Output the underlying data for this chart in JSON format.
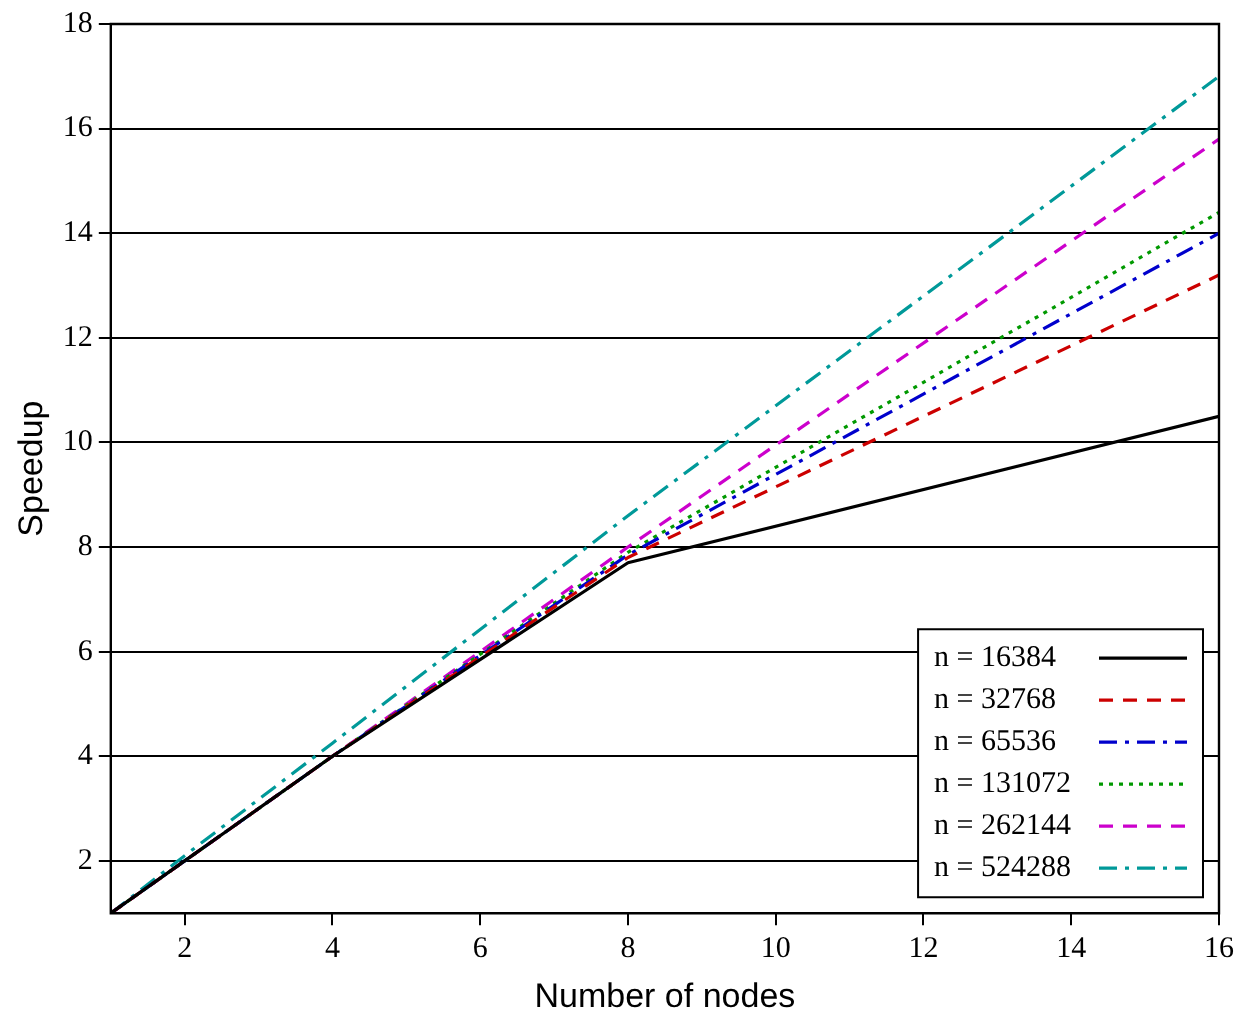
{
  "chart_data": {
    "type": "line",
    "xlabel": "Number of nodes",
    "ylabel": "Speedup",
    "x": [
      1,
      2,
      4,
      8,
      16
    ],
    "series": [
      {
        "name": "n = 16384",
        "color": "#000000",
        "line_style": "solid",
        "values": [
          1,
          2,
          4,
          7.7,
          10.5
        ]
      },
      {
        "name": "n = 32768",
        "color": "#cc0000",
        "line_style": "dashed",
        "values": [
          1,
          2,
          4,
          7.8,
          13.2
        ]
      },
      {
        "name": "n = 65536",
        "color": "#0000cc",
        "line_style": "dashdot",
        "values": [
          1,
          2,
          4,
          7.85,
          14.0
        ]
      },
      {
        "name": "n = 131072",
        "color": "#009900",
        "line_style": "dotted",
        "values": [
          1,
          2,
          4,
          7.9,
          14.4
        ]
      },
      {
        "name": "n = 262144",
        "color": "#cc00cc",
        "line_style": "dashed",
        "values": [
          1,
          2,
          4,
          8.0,
          15.8
        ]
      },
      {
        "name": "n = 524288",
        "color": "#009999",
        "line_style": "dashdot",
        "values": [
          1,
          2.1,
          4.25,
          8.6,
          17.0
        ]
      }
    ],
    "xlim": [
      1,
      16
    ],
    "xticks": [
      2,
      4,
      6,
      8,
      10,
      12,
      14,
      16
    ],
    "ylim": [
      1,
      18
    ],
    "yticks": [
      2,
      4,
      6,
      8,
      10,
      12,
      14,
      16,
      18
    ],
    "grid": "y",
    "legend": "bottom right",
    "marker": "none"
  }
}
